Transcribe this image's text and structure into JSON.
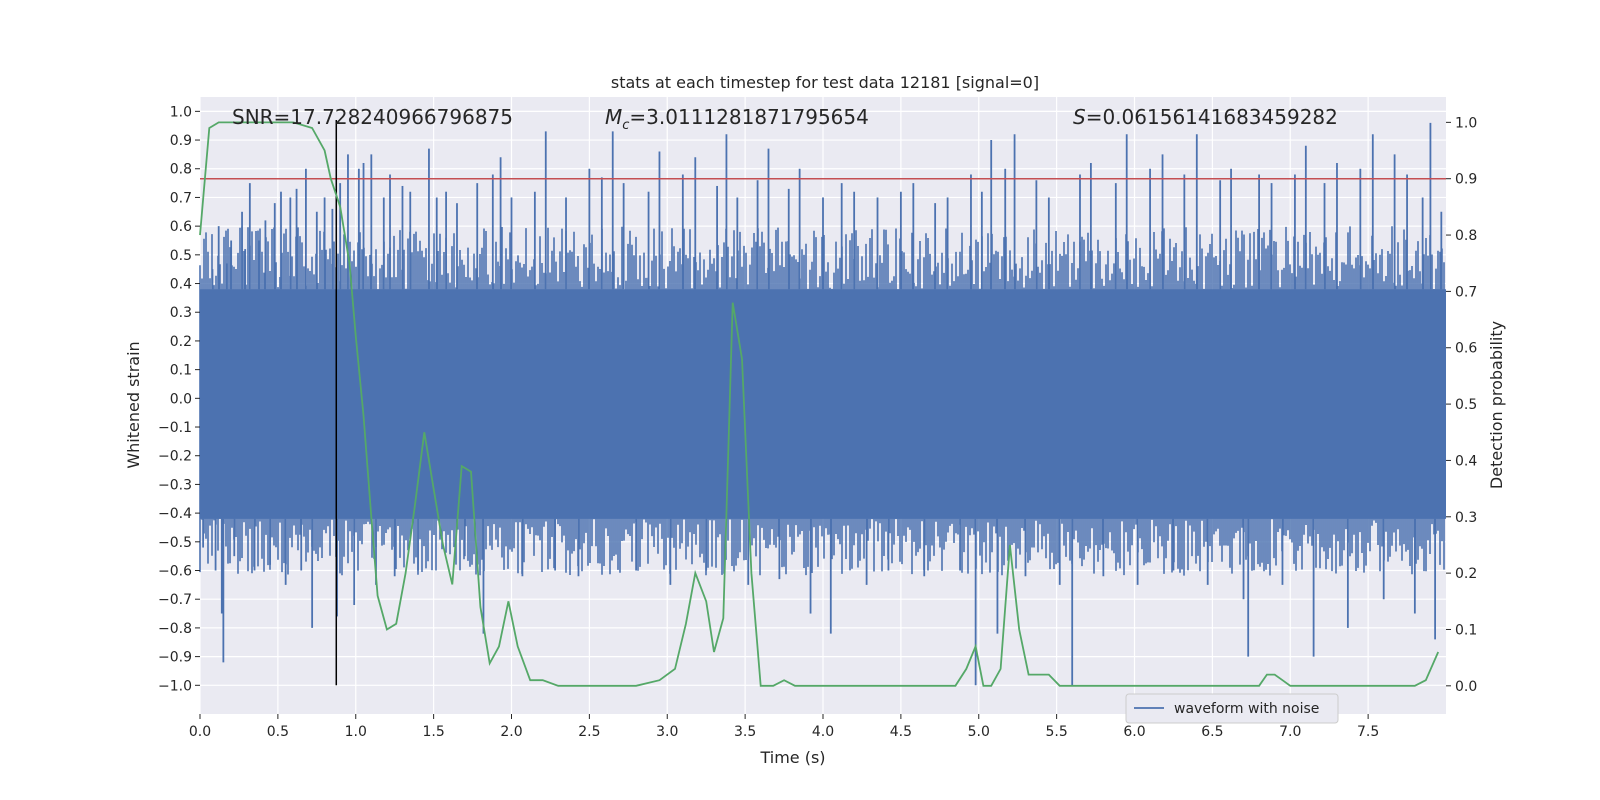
{
  "chart_data": {
    "type": "line",
    "title": "stats at each timestep for test data 12181 [signal=0]",
    "xlabel": "Time (s)",
    "ylabel": "Whitened strain",
    "y2label": "Detection probability",
    "xlim": [
      0.0,
      8.0
    ],
    "ylim": [
      -1.1,
      1.05
    ],
    "y2lim": [
      -0.05,
      1.045
    ],
    "x_ticks": [
      "0.0",
      "0.5",
      "1.0",
      "1.5",
      "2.0",
      "2.5",
      "3.0",
      "3.5",
      "4.0",
      "4.5",
      "5.0",
      "5.5",
      "6.0",
      "6.5",
      "7.0",
      "7.5"
    ],
    "y_ticks": [
      "1.0",
      "0.9",
      "0.8",
      "0.7",
      "0.6",
      "0.5",
      "0.4",
      "0.3",
      "0.2",
      "0.1",
      "0.0",
      "−0.1",
      "−0.2",
      "−0.3",
      "−0.4",
      "−0.5",
      "−0.6",
      "−0.7",
      "−0.8",
      "−0.9",
      "−1.0"
    ],
    "y2_ticks": [
      "1.0",
      "0.9",
      "0.8",
      "0.7",
      "0.6",
      "0.5",
      "0.4",
      "0.3",
      "0.2",
      "0.1",
      "0.0"
    ],
    "grid": true,
    "legend_position": "lower-right",
    "annotations": {
      "snr": "SNR=17.728240966796875",
      "mc_symbol": "M",
      "mc_sub": "c",
      "mc_value": "=3.0111281871795654",
      "s_symbol": "S",
      "s_value": "=0.06156141683459282"
    },
    "threshold_line": {
      "y2": 0.9,
      "color": "#c44e52"
    },
    "marker_line": {
      "x": 0.875,
      "y_from": -1.0,
      "y_to": 0.97,
      "color": "#000000"
    },
    "waveform": {
      "name": "waveform with noise",
      "color": "#4c72b0",
      "envelope_upper": 0.38,
      "envelope_lower": -0.42,
      "spikes": [
        [
          0.02,
          -0.52
        ],
        [
          0.08,
          0.45
        ],
        [
          0.1,
          -0.6
        ],
        [
          0.12,
          0.6
        ],
        [
          0.14,
          -0.75
        ],
        [
          0.15,
          -0.92
        ],
        [
          0.17,
          0.47
        ],
        [
          0.2,
          0.55
        ],
        [
          0.22,
          -0.55
        ],
        [
          0.27,
          0.65
        ],
        [
          0.29,
          0.52
        ],
        [
          0.32,
          0.75
        ],
        [
          0.35,
          -0.6
        ],
        [
          0.38,
          0.55
        ],
        [
          0.42,
          0.62
        ],
        [
          0.45,
          -0.58
        ],
        [
          0.48,
          0.68
        ],
        [
          0.52,
          0.72
        ],
        [
          0.55,
          -0.65
        ],
        [
          0.58,
          0.7
        ],
        [
          0.62,
          0.73
        ],
        [
          0.65,
          -0.6
        ],
        [
          0.68,
          0.8
        ],
        [
          0.72,
          -0.8
        ],
        [
          0.75,
          0.65
        ],
        [
          0.8,
          0.7
        ],
        [
          0.85,
          0.66
        ],
        [
          0.88,
          -0.76
        ],
        [
          0.9,
          0.75
        ],
        [
          0.95,
          0.85
        ],
        [
          0.99,
          -0.72
        ],
        [
          1.02,
          0.8
        ],
        [
          1.05,
          0.82
        ],
        [
          1.1,
          0.85
        ],
        [
          1.13,
          -0.65
        ],
        [
          1.18,
          0.7
        ],
        [
          1.22,
          0.78
        ],
        [
          1.25,
          -0.62
        ],
        [
          1.3,
          0.74
        ],
        [
          1.35,
          0.72
        ],
        [
          1.4,
          -0.6
        ],
        [
          1.47,
          0.87
        ],
        [
          1.52,
          0.7
        ],
        [
          1.58,
          0.72
        ],
        [
          1.65,
          0.68
        ],
        [
          1.7,
          -0.55
        ],
        [
          1.78,
          0.75
        ],
        [
          1.82,
          -0.82
        ],
        [
          1.88,
          0.78
        ],
        [
          1.93,
          0.84
        ],
        [
          2.0,
          0.7
        ],
        [
          2.07,
          -0.62
        ],
        [
          2.15,
          0.72
        ],
        [
          2.22,
          0.93
        ],
        [
          2.28,
          -0.6
        ],
        [
          2.35,
          0.7
        ],
        [
          2.43,
          -0.62
        ],
        [
          2.5,
          0.8
        ],
        [
          2.58,
          0.77
        ],
        [
          2.65,
          0.93
        ],
        [
          2.72,
          0.75
        ],
        [
          2.8,
          -0.6
        ],
        [
          2.88,
          0.72
        ],
        [
          2.95,
          0.86
        ],
        [
          3.02,
          -0.65
        ],
        [
          3.1,
          0.78
        ],
        [
          3.18,
          0.84
        ],
        [
          3.25,
          -0.6
        ],
        [
          3.32,
          0.74
        ],
        [
          3.38,
          0.92
        ],
        [
          3.45,
          0.7
        ],
        [
          3.52,
          -0.65
        ],
        [
          3.58,
          0.76
        ],
        [
          3.65,
          0.87
        ],
        [
          3.72,
          -0.63
        ],
        [
          3.78,
          0.73
        ],
        [
          3.85,
          0.8
        ],
        [
          3.92,
          -0.75
        ],
        [
          4.0,
          0.7
        ],
        [
          4.05,
          -0.82
        ],
        [
          4.12,
          0.75
        ],
        [
          4.2,
          0.72
        ],
        [
          4.28,
          -0.65
        ],
        [
          4.35,
          0.7
        ],
        [
          4.42,
          -0.6
        ],
        [
          4.5,
          0.72
        ],
        [
          4.58,
          0.75
        ],
        [
          4.65,
          -0.62
        ],
        [
          4.72,
          0.68
        ],
        [
          4.8,
          0.7
        ],
        [
          4.88,
          -0.6
        ],
        [
          4.95,
          0.78
        ],
        [
          4.98,
          -1.0
        ],
        [
          5.02,
          0.72
        ],
        [
          5.08,
          0.9
        ],
        [
          5.12,
          -0.82
        ],
        [
          5.17,
          0.8
        ],
        [
          5.23,
          0.92
        ],
        [
          5.3,
          -0.62
        ],
        [
          5.37,
          0.76
        ],
        [
          5.45,
          0.7
        ],
        [
          5.52,
          -0.65
        ],
        [
          5.6,
          -1.0
        ],
        [
          5.65,
          0.78
        ],
        [
          5.72,
          0.82
        ],
        [
          5.8,
          -0.62
        ],
        [
          5.88,
          0.75
        ],
        [
          5.95,
          0.92
        ],
        [
          6.02,
          -0.65
        ],
        [
          6.1,
          0.8
        ],
        [
          6.18,
          0.85
        ],
        [
          6.25,
          -0.6
        ],
        [
          6.32,
          0.78
        ],
        [
          6.4,
          0.92
        ],
        [
          6.47,
          -0.65
        ],
        [
          6.55,
          0.76
        ],
        [
          6.62,
          0.8
        ],
        [
          6.7,
          -0.7
        ],
        [
          6.73,
          -0.9
        ],
        [
          6.8,
          0.78
        ],
        [
          6.88,
          0.75
        ],
        [
          6.95,
          -0.65
        ],
        [
          7.03,
          0.78
        ],
        [
          7.1,
          0.88
        ],
        [
          7.15,
          -0.9
        ],
        [
          7.22,
          0.75
        ],
        [
          7.3,
          0.82
        ],
        [
          7.37,
          -0.8
        ],
        [
          7.45,
          0.8
        ],
        [
          7.53,
          0.92
        ],
        [
          7.6,
          -0.7
        ],
        [
          7.67,
          0.85
        ],
        [
          7.75,
          0.78
        ],
        [
          7.8,
          -0.75
        ],
        [
          7.85,
          0.7
        ],
        [
          7.9,
          0.96
        ],
        [
          7.93,
          -0.84
        ],
        [
          7.97,
          0.65
        ]
      ]
    },
    "probability_series": {
      "color": "#55a868",
      "x": [
        0.0,
        0.06,
        0.12,
        0.2,
        0.3,
        0.45,
        0.6,
        0.72,
        0.8,
        0.84,
        0.9,
        0.96,
        1.0,
        1.05,
        1.1,
        1.14,
        1.2,
        1.26,
        1.32,
        1.38,
        1.44,
        1.5,
        1.56,
        1.62,
        1.68,
        1.74,
        1.8,
        1.86,
        1.92,
        1.98,
        2.04,
        2.12,
        2.2,
        2.3,
        2.45,
        2.6,
        2.8,
        2.95,
        3.05,
        3.12,
        3.18,
        3.25,
        3.3,
        3.36,
        3.42,
        3.48,
        3.54,
        3.6,
        3.68,
        3.75,
        3.82,
        3.9,
        4.0,
        4.15,
        4.35,
        4.55,
        4.7,
        4.85,
        4.92,
        4.98,
        5.03,
        5.08,
        5.14,
        5.2,
        5.26,
        5.32,
        5.38,
        5.45,
        5.52,
        5.6,
        5.7,
        5.8,
        6.0,
        6.3,
        6.6,
        6.8,
        6.85,
        6.9,
        6.95,
        7.0,
        7.1,
        7.3,
        7.5,
        7.7,
        7.8,
        7.87,
        7.95
      ],
      "y": [
        0.8,
        0.99,
        1.0,
        1.0,
        1.0,
        1.0,
        1.0,
        0.99,
        0.95,
        0.9,
        0.85,
        0.75,
        0.62,
        0.48,
        0.3,
        0.16,
        0.1,
        0.11,
        0.2,
        0.32,
        0.45,
        0.35,
        0.25,
        0.18,
        0.39,
        0.38,
        0.14,
        0.04,
        0.07,
        0.15,
        0.07,
        0.01,
        0.01,
        0.0,
        0.0,
        0.0,
        0.0,
        0.01,
        0.03,
        0.11,
        0.2,
        0.15,
        0.06,
        0.12,
        0.68,
        0.58,
        0.2,
        0.0,
        0.0,
        0.01,
        0.0,
        0.0,
        0.0,
        0.0,
        0.0,
        0.0,
        0.0,
        0.0,
        0.03,
        0.07,
        0.0,
        0.0,
        0.03,
        0.25,
        0.1,
        0.02,
        0.02,
        0.02,
        0.0,
        0.0,
        0.0,
        0.0,
        0.0,
        0.0,
        0.0,
        0.0,
        0.02,
        0.02,
        0.01,
        0.0,
        0.0,
        0.0,
        0.0,
        0.0,
        0.0,
        0.01,
        0.06
      ]
    }
  }
}
